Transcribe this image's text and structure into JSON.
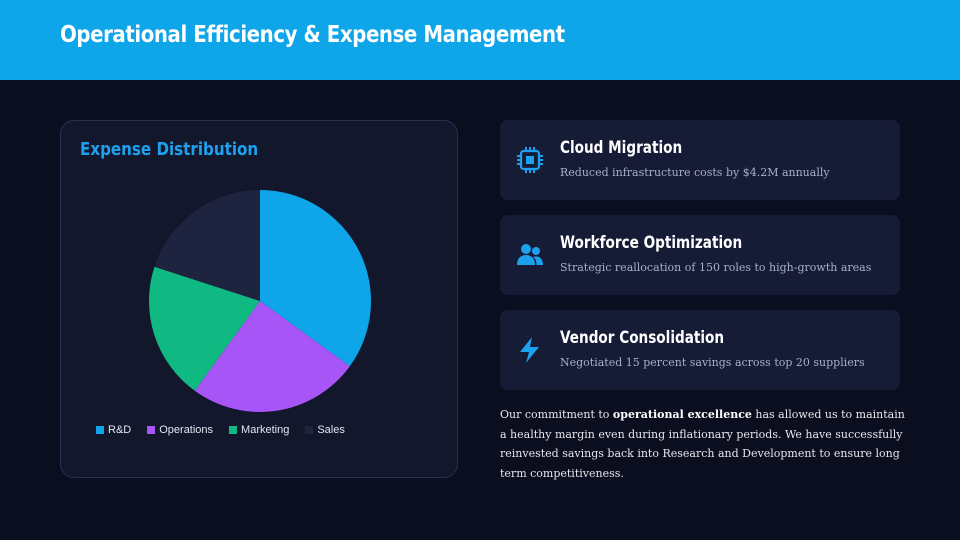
{
  "header": {
    "title": "Operational Efficiency & Expense Management"
  },
  "colors": {
    "header_bg": "#0ea5e9",
    "page_bg": "#0b0e1f",
    "card_bg": "#171c36",
    "accent": "#1da1ee"
  },
  "chart_data": {
    "type": "pie",
    "title": "Expense Distribution",
    "categories": [
      "R&D",
      "Operations",
      "Marketing",
      "Sales"
    ],
    "values": [
      35,
      25,
      20,
      20
    ],
    "colors": [
      "#0ea5e9",
      "#a855f7",
      "#10b981",
      "#1e2340"
    ],
    "legend_position": "bottom"
  },
  "highlights": [
    {
      "icon": "cpu-chip-icon",
      "title": "Cloud Migration",
      "description": "Reduced infrastructure costs by $4.2M annually"
    },
    {
      "icon": "users-icon",
      "title": "Workforce Optimization",
      "description": "Strategic reallocation of 150 roles to high-growth areas"
    },
    {
      "icon": "lightning-bolt-icon",
      "title": "Vendor Consolidation",
      "description": "Negotiated 15 percent savings across top 20 suppliers"
    }
  ],
  "summary": {
    "before": "Our commitment to ",
    "emphasis": "operational excellence",
    "after": " has allowed us to maintain a healthy margin even during inflationary periods. We have successfully reinvested savings back into Research and Development to ensure long term competitiveness."
  }
}
